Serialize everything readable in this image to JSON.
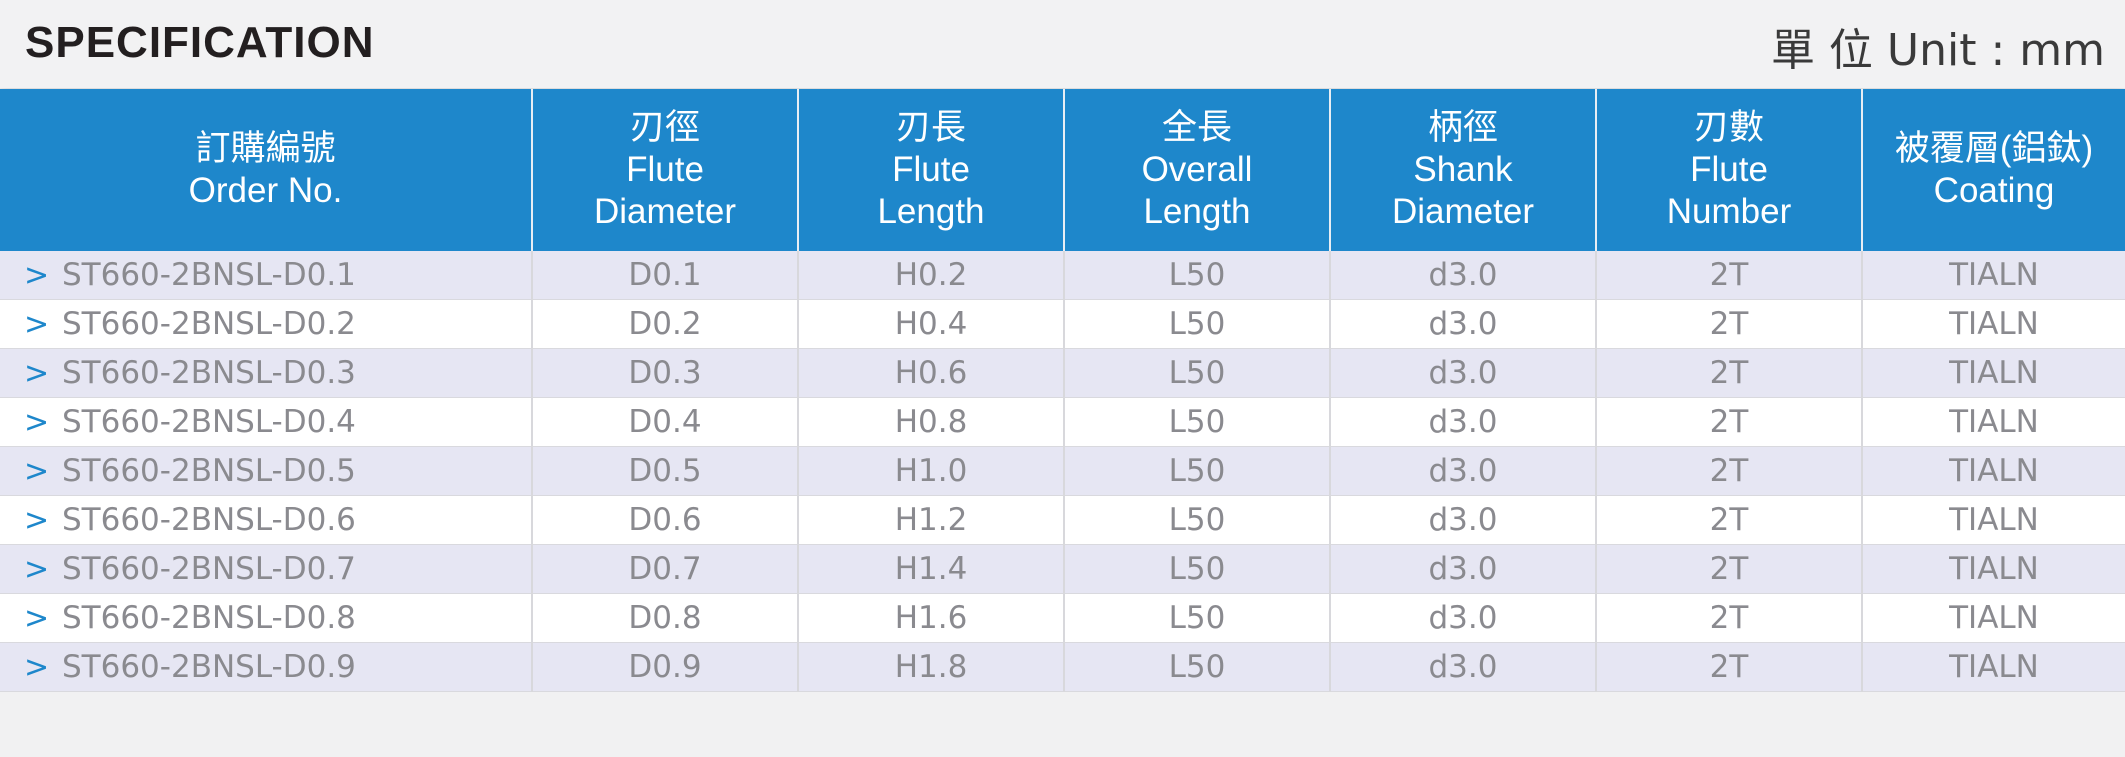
{
  "header": {
    "title": "SPECIFICATION",
    "unit": "單 位 Unit : mm"
  },
  "columns": [
    {
      "zh": "訂購編號",
      "en1": "Order No.",
      "en2": ""
    },
    {
      "zh": "刃徑",
      "en1": "Flute",
      "en2": "Diameter"
    },
    {
      "zh": "刃長",
      "en1": "Flute",
      "en2": "Length"
    },
    {
      "zh": "全長",
      "en1": "Overall",
      "en2": "Length"
    },
    {
      "zh": "柄徑",
      "en1": "Shank",
      "en2": "Diameter"
    },
    {
      "zh": "刃數",
      "en1": "Flute",
      "en2": "Number"
    },
    {
      "zh": "被覆層(鋁鈦)",
      "en1": "Coating",
      "en2": ""
    }
  ],
  "arrow": ">",
  "rows": [
    {
      "order": "ST660-2BNSL-D0.1",
      "fd": "D0.1",
      "fl": "H0.2",
      "ol": "L50",
      "sd": "d3.0",
      "fn": "2T",
      "coat": "TIALN"
    },
    {
      "order": "ST660-2BNSL-D0.2",
      "fd": "D0.2",
      "fl": "H0.4",
      "ol": "L50",
      "sd": "d3.0",
      "fn": "2T",
      "coat": "TIALN"
    },
    {
      "order": "ST660-2BNSL-D0.3",
      "fd": "D0.3",
      "fl": "H0.6",
      "ol": "L50",
      "sd": "d3.0",
      "fn": "2T",
      "coat": "TIALN"
    },
    {
      "order": "ST660-2BNSL-D0.4",
      "fd": "D0.4",
      "fl": "H0.8",
      "ol": "L50",
      "sd": "d3.0",
      "fn": "2T",
      "coat": "TIALN"
    },
    {
      "order": "ST660-2BNSL-D0.5",
      "fd": "D0.5",
      "fl": "H1.0",
      "ol": "L50",
      "sd": "d3.0",
      "fn": "2T",
      "coat": "TIALN"
    },
    {
      "order": "ST660-2BNSL-D0.6",
      "fd": "D0.6",
      "fl": "H1.2",
      "ol": "L50",
      "sd": "d3.0",
      "fn": "2T",
      "coat": "TIALN"
    },
    {
      "order": "ST660-2BNSL-D0.7",
      "fd": "D0.7",
      "fl": "H1.4",
      "ol": "L50",
      "sd": "d3.0",
      "fn": "2T",
      "coat": "TIALN"
    },
    {
      "order": "ST660-2BNSL-D0.8",
      "fd": "D0.8",
      "fl": "H1.6",
      "ol": "L50",
      "sd": "d3.0",
      "fn": "2T",
      "coat": "TIALN"
    },
    {
      "order": "ST660-2BNSL-D0.9",
      "fd": "D0.9",
      "fl": "H1.8",
      "ol": "L50",
      "sd": "d3.0",
      "fn": "2T",
      "coat": "TIALN"
    }
  ],
  "colors": {
    "header_blue": "#1e87cb",
    "row_odd": "#e6e6f3",
    "row_even": "#ffffff",
    "arrow": "#1e87cb"
  }
}
